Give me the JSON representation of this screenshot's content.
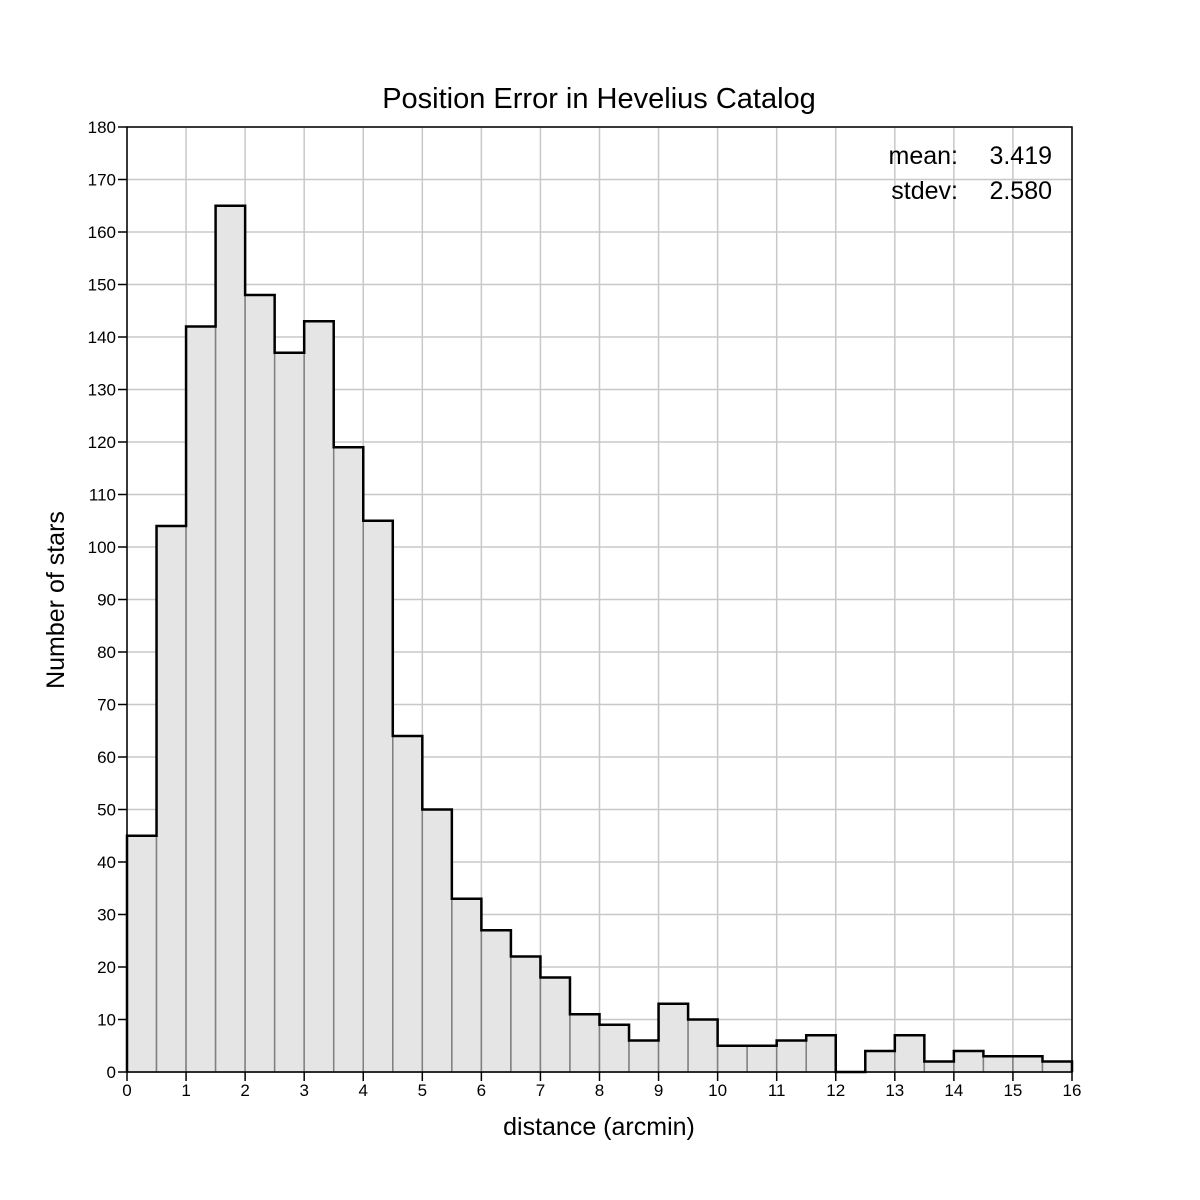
{
  "chart_data": {
    "type": "bar",
    "title": "Position Error in Hevelius Catalog",
    "xlabel": "distance (arcmin)",
    "ylabel": "Number of stars",
    "xlim": [
      0,
      16
    ],
    "ylim": [
      0,
      180
    ],
    "bin_width": 0.5,
    "bin_starts": [
      0,
      0.5,
      1,
      1.5,
      2,
      2.5,
      3,
      3.5,
      4,
      4.5,
      5,
      5.5,
      6,
      6.5,
      7,
      7.5,
      8,
      8.5,
      9,
      9.5,
      10,
      10.5,
      11,
      11.5,
      12,
      12.5,
      13,
      13.5,
      14,
      14.5,
      15,
      15.5
    ],
    "values": [
      45,
      104,
      142,
      165,
      148,
      137,
      143,
      119,
      105,
      64,
      50,
      33,
      27,
      22,
      18,
      11,
      9,
      6,
      13,
      10,
      5,
      5,
      6,
      7,
      0,
      4,
      7,
      2,
      4,
      3,
      3,
      2
    ],
    "x_ticks": [
      "0",
      "1",
      "2",
      "3",
      "4",
      "5",
      "6",
      "7",
      "8",
      "9",
      "10",
      "11",
      "12",
      "13",
      "14",
      "15",
      "16"
    ],
    "y_ticks": [
      "0",
      "10",
      "20",
      "30",
      "40",
      "50",
      "60",
      "70",
      "80",
      "90",
      "100",
      "110",
      "120",
      "130",
      "140",
      "150",
      "160",
      "170",
      "180"
    ],
    "grid": true,
    "stats": {
      "mean_label": "mean:",
      "mean_value": "3.419",
      "stdev_label": "stdev:",
      "stdev_value": "2.580",
      "placement": "top-right"
    },
    "colors": {
      "bar_fill": "#e5e5e5",
      "bar_edge": "#808080",
      "outline": "#000000",
      "grid": "#c8c8c8"
    }
  }
}
